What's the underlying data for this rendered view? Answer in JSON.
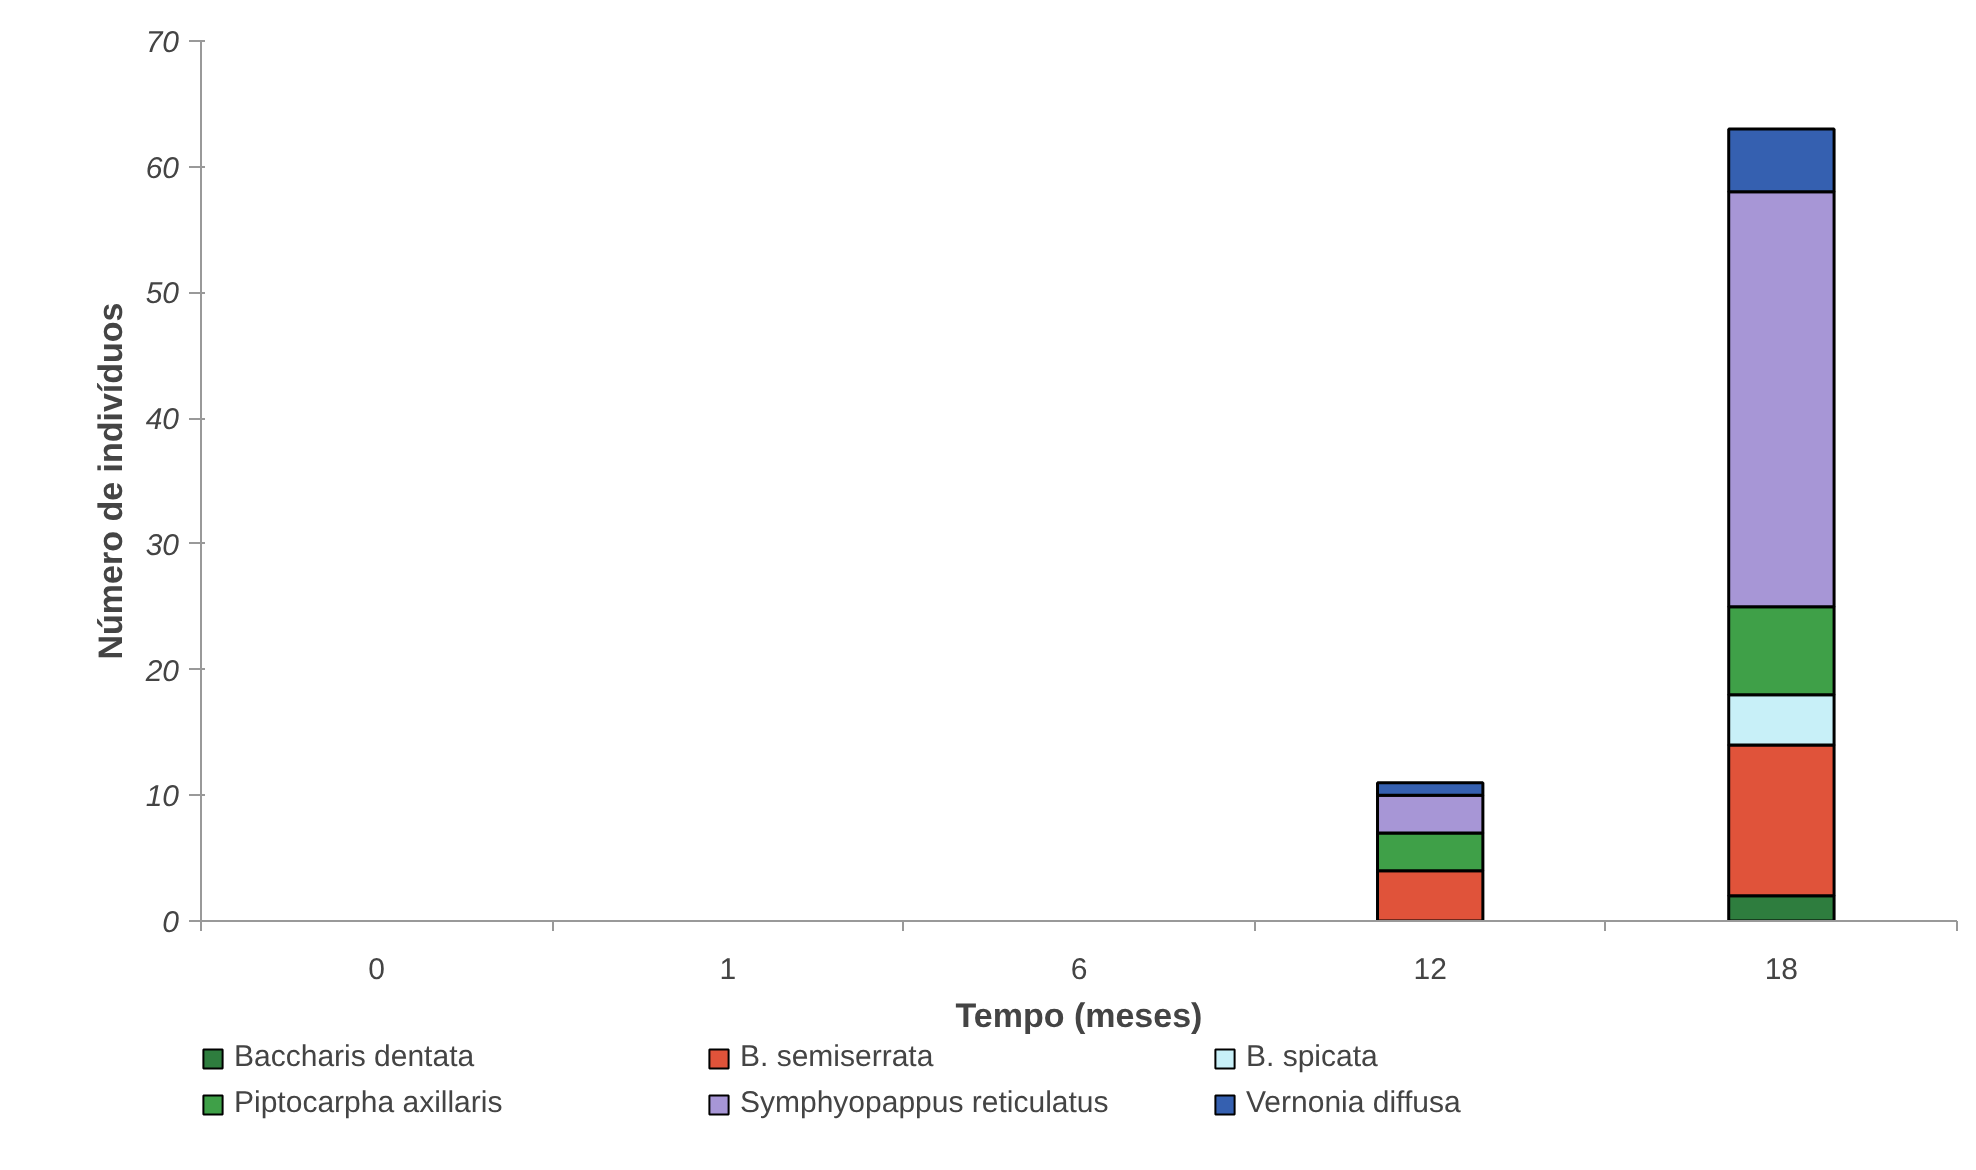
{
  "chart_data": {
    "type": "bar",
    "stacked": true,
    "xlabel": "Tempo (meses)",
    "ylabel": "Número de indivíduos",
    "categories": [
      "0",
      "1",
      "6",
      "12",
      "18"
    ],
    "series": [
      {
        "name": "Baccharis dentata",
        "color": "#2e7d3e",
        "values": [
          0,
          0,
          0,
          0,
          2
        ]
      },
      {
        "name": "B. semiserrata",
        "color": "#e0533a",
        "values": [
          0,
          0,
          0,
          4,
          12
        ]
      },
      {
        "name": "B. spicata",
        "color": "#c8f0f8",
        "values": [
          0,
          0,
          0,
          0,
          4
        ]
      },
      {
        "name": "Piptocarpha axillaris",
        "color": "#3fa048",
        "values": [
          0,
          0,
          0,
          3,
          7
        ]
      },
      {
        "name": "Symphyopappus reticulatus",
        "color": "#a796d6",
        "values": [
          0,
          0,
          0,
          3,
          33
        ]
      },
      {
        "name": "Vernonia diffusa",
        "color": "#3560b0",
        "values": [
          0,
          0,
          0,
          1,
          5
        ]
      }
    ],
    "ylim": [
      0,
      70
    ],
    "yticks": [
      0,
      10,
      20,
      30,
      40,
      50,
      60,
      70
    ],
    "grid": false,
    "legend": "bottom"
  }
}
